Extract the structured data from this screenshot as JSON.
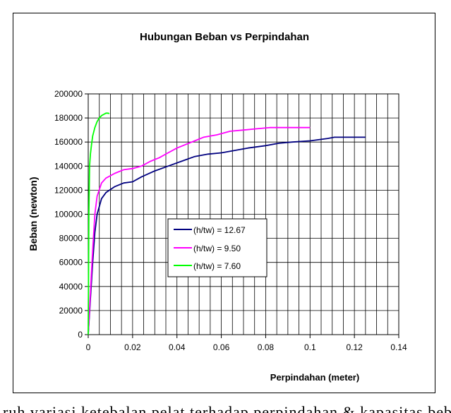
{
  "chart_data": {
    "type": "line",
    "title": "Hubungan Beban vs Perpindahan",
    "xlabel": "Perpindahan (meter)",
    "ylabel": "Beban (newton)",
    "xlim": [
      0,
      0.14
    ],
    "ylim": [
      0,
      200000
    ],
    "x_ticks": [
      0,
      0.02,
      0.04,
      0.06,
      0.08,
      0.1,
      0.12,
      0.14
    ],
    "x_tick_labels": [
      "0",
      "0.02",
      "0.04",
      "0.06",
      "0.08",
      "0.1",
      "0.12",
      "0.14"
    ],
    "y_ticks": [
      0,
      20000,
      40000,
      60000,
      80000,
      100000,
      120000,
      140000,
      160000,
      180000,
      200000
    ],
    "y_tick_labels": [
      "0",
      "20000",
      "40000",
      "60000",
      "80000",
      "100000",
      "120000",
      "140000",
      "160000",
      "180000",
      "200000"
    ],
    "grid": true,
    "legend_position": "center",
    "series": [
      {
        "name": "(h/tw) = 12.67",
        "color": "#000080",
        "x": [
          0,
          0.001,
          0.002,
          0.003,
          0.004,
          0.006,
          0.008,
          0.012,
          0.016,
          0.02,
          0.024,
          0.03,
          0.036,
          0.042,
          0.048,
          0.054,
          0.06,
          0.066,
          0.072,
          0.08,
          0.086,
          0.092,
          0.1,
          0.108,
          0.111,
          0.118,
          0.125
        ],
        "y": [
          0,
          30000,
          60000,
          85000,
          100000,
          113000,
          118000,
          123000,
          126000,
          127000,
          131000,
          136000,
          140000,
          144000,
          148000,
          150000,
          151000,
          153000,
          155000,
          157000,
          159000,
          160000,
          161000,
          163000,
          164000,
          164000,
          164000
        ]
      },
      {
        "name": "(h/tw) = 9.50",
        "color": "#ff00ff",
        "x": [
          0,
          0.001,
          0.002,
          0.003,
          0.004,
          0.006,
          0.008,
          0.012,
          0.016,
          0.02,
          0.024,
          0.028,
          0.032,
          0.036,
          0.04,
          0.044,
          0.048,
          0.052,
          0.058,
          0.064,
          0.07,
          0.076,
          0.082,
          0.09,
          0.1
        ],
        "y": [
          0,
          35000,
          70000,
          100000,
          115000,
          126000,
          130000,
          134000,
          137000,
          138000,
          140000,
          144000,
          147000,
          151000,
          155000,
          158000,
          161000,
          164000,
          166000,
          169000,
          170000,
          171000,
          172000,
          172000,
          172000
        ]
      },
      {
        "name": "(h/tw) = 7.60",
        "color": "#00ff00",
        "x": [
          0,
          0.0003,
          0.0006,
          0.001,
          0.0015,
          0.002,
          0.003,
          0.004,
          0.005,
          0.006,
          0.007,
          0.008,
          0.009,
          0.0095
        ],
        "y": [
          0,
          100000,
          140000,
          150000,
          158000,
          165000,
          172000,
          177000,
          180000,
          182000,
          183000,
          184000,
          184000,
          183500
        ]
      }
    ]
  },
  "footer_text": "ruh variasi ketebalan pelat terhadap perpindahan & kapasitas beban"
}
